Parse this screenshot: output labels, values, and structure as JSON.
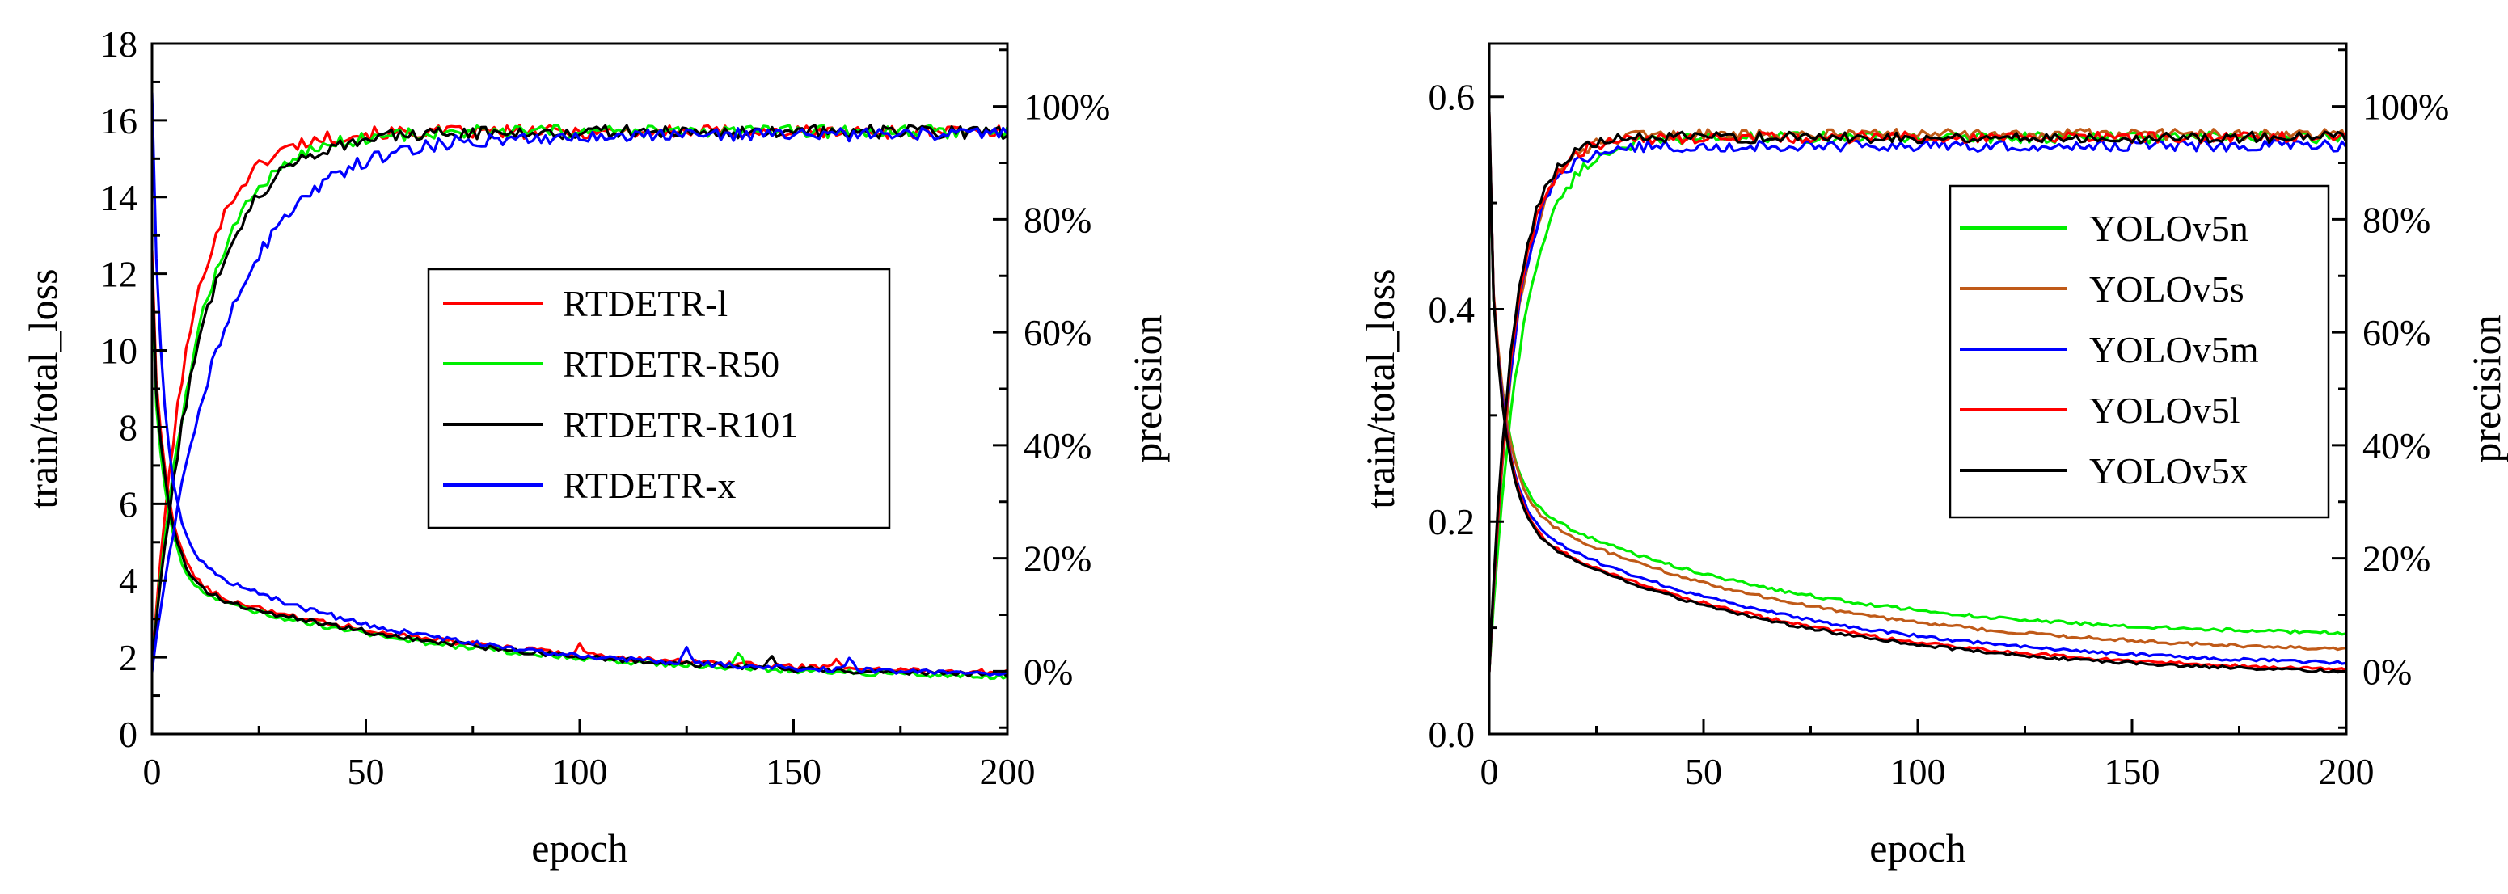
{
  "chart_data": [
    {
      "type": "line",
      "xlabel": "epoch",
      "ylabel": "train/total_loss",
      "ylabel_right": "precision",
      "xlim": [
        0,
        200
      ],
      "ylim": [
        0,
        18
      ],
      "ylim_right": [
        -0.1111,
        1.1111
      ],
      "xticks": [
        0,
        50,
        100,
        150,
        200
      ],
      "xtick_labels": [
        "0",
        "50",
        "100",
        "150",
        "200"
      ],
      "yticks": [
        0,
        2,
        4,
        6,
        8,
        10,
        12,
        14,
        16,
        18
      ],
      "ytick_labels": [
        "0",
        "2",
        "4",
        "6",
        "8",
        "10",
        "12",
        "14",
        "16",
        "18"
      ],
      "yticks_right": [
        0,
        0.2,
        0.4,
        0.6,
        0.8,
        1.0
      ],
      "ytick_labels_right": [
        "0%",
        "20%",
        "40%",
        "60%",
        "80%",
        "100%"
      ],
      "legend_position": "center-right",
      "series": [
        {
          "name": "RTDETR-l",
          "color": "#ff0000",
          "loss": {
            "start": 12.6,
            "a1": 6.8,
            "t1": 3.6,
            "a2": 2.6,
            "t2": 70,
            "end": 1.45,
            "noise": 0.07,
            "spikes": [
              [
                100,
                0.3
              ],
              [
                160,
                0.25
              ]
            ]
          },
          "precision": {
            "plateau": 0.955,
            "rate": 0.11,
            "start": 0.01,
            "noise": 0.012
          }
        },
        {
          "name": "RTDETR-R50",
          "color": "#00ee00",
          "loss": {
            "start": 12.0,
            "a1": 6.3,
            "t1": 3.3,
            "a2": 2.6,
            "t2": 70,
            "end": 1.35,
            "noise": 0.07,
            "spikes": [
              [
                137,
                0.45
              ]
            ]
          },
          "precision": {
            "plateau": 0.955,
            "rate": 0.09,
            "start": 0.01,
            "noise": 0.012
          }
        },
        {
          "name": "RTDETR-R101",
          "color": "#000000",
          "loss": {
            "start": 12.3,
            "a1": 6.6,
            "t1": 3.5,
            "a2": 2.6,
            "t2": 70,
            "end": 1.4,
            "noise": 0.07,
            "spikes": [
              [
                145,
                0.25
              ]
            ]
          },
          "precision": {
            "plateau": 0.955,
            "rate": 0.085,
            "start": 0.01,
            "noise": 0.012
          }
        },
        {
          "name": "RTDETR-x",
          "color": "#0000ff",
          "loss": {
            "start": 16.7,
            "a1": 10.5,
            "t1": 3.0,
            "a2": 3.4,
            "t2": 55,
            "end": 1.5,
            "noise": 0.07,
            "spikes": [
              [
                125,
                0.4
              ],
              [
                163,
                0.3
              ]
            ]
          },
          "precision": {
            "plateau": 0.95,
            "rate": 0.06,
            "start": 0.0,
            "noise": 0.012
          }
        }
      ]
    },
    {
      "type": "line",
      "xlabel": "epoch",
      "ylabel": "train/total_loss",
      "ylabel_right": "precision",
      "xlim": [
        0,
        200
      ],
      "ylim": [
        0,
        0.65
      ],
      "ylim_right": [
        -0.1111,
        1.1111
      ],
      "xticks": [
        0,
        50,
        100,
        150,
        200
      ],
      "xtick_labels": [
        "0",
        "50",
        "100",
        "150",
        "200"
      ],
      "yticks": [
        0,
        0.2,
        0.4,
        0.6
      ],
      "ytick_labels": [
        "0.0",
        "0.2",
        "0.4",
        "0.6"
      ],
      "yticks_right": [
        0,
        0.2,
        0.4,
        0.6,
        0.8,
        1.0
      ],
      "ytick_labels_right": [
        "0%",
        "20%",
        "40%",
        "60%",
        "80%",
        "100%"
      ],
      "legend_position": "right",
      "series": [
        {
          "name": "YOLOv5n",
          "color": "#00ee00",
          "loss": {
            "start": 0.57,
            "a1": 0.24,
            "t1": 3.5,
            "a2": 0.14,
            "t2": 60,
            "end": 0.09,
            "noise": 0.0015,
            "spikes": []
          },
          "precision": {
            "plateau": 0.945,
            "rate": 0.13,
            "start": 0.0,
            "noise": 0.01
          }
        },
        {
          "name": "YOLOv5s",
          "color": "#c05a18",
          "loss": {
            "start": 0.575,
            "a1": 0.26,
            "t1": 3.5,
            "a2": 0.15,
            "t2": 65,
            "end": 0.073,
            "noise": 0.0015,
            "spikes": []
          },
          "precision": {
            "plateau": 0.95,
            "rate": 0.16,
            "start": 0.0,
            "noise": 0.01
          }
        },
        {
          "name": "YOLOv5m",
          "color": "#0000ff",
          "loss": {
            "start": 0.58,
            "a1": 0.27,
            "t1": 3.5,
            "a2": 0.15,
            "t2": 65,
            "end": 0.06,
            "noise": 0.0015,
            "spikes": []
          },
          "precision": {
            "plateau": 0.93,
            "rate": 0.17,
            "start": 0.0,
            "noise": 0.01
          }
        },
        {
          "name": "YOLOv5l",
          "color": "#ff0000",
          "loss": {
            "start": 0.583,
            "a1": 0.28,
            "t1": 3.5,
            "a2": 0.15,
            "t2": 65,
            "end": 0.054,
            "noise": 0.0015,
            "spikes": []
          },
          "precision": {
            "plateau": 0.945,
            "rate": 0.17,
            "start": 0.0,
            "noise": 0.01
          }
        },
        {
          "name": "YOLOv5x",
          "color": "#000000",
          "loss": {
            "start": 0.585,
            "a1": 0.28,
            "t1": 3.5,
            "a2": 0.15,
            "t2": 65,
            "end": 0.052,
            "noise": 0.0015,
            "spikes": []
          },
          "precision": {
            "plateau": 0.945,
            "rate": 0.18,
            "start": 0.0,
            "noise": 0.01
          }
        }
      ]
    }
  ]
}
